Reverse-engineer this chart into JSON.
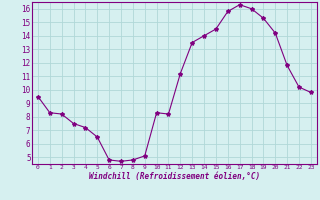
{
  "x": [
    0,
    1,
    2,
    3,
    4,
    5,
    6,
    7,
    8,
    9,
    10,
    11,
    12,
    13,
    14,
    15,
    16,
    17,
    18,
    19,
    20,
    21,
    22,
    23
  ],
  "y": [
    9.5,
    8.3,
    8.2,
    7.5,
    7.2,
    6.5,
    4.8,
    4.7,
    4.8,
    5.1,
    8.3,
    8.2,
    11.2,
    13.5,
    14.0,
    14.5,
    15.8,
    16.3,
    16.0,
    15.3,
    14.2,
    11.8,
    10.2,
    9.8
  ],
  "line_color": "#800080",
  "marker": "*",
  "marker_size": 3,
  "background_color": "#d6f0f0",
  "grid_color": "#b0d8d8",
  "xlabel": "Windchill (Refroidissement éolien,°C)",
  "ylim": [
    4.5,
    16.5
  ],
  "xlim": [
    -0.5,
    23.5
  ],
  "yticks": [
    5,
    6,
    7,
    8,
    9,
    10,
    11,
    12,
    13,
    14,
    15,
    16
  ],
  "xticks": [
    0,
    1,
    2,
    3,
    4,
    5,
    6,
    7,
    8,
    9,
    10,
    11,
    12,
    13,
    14,
    15,
    16,
    17,
    18,
    19,
    20,
    21,
    22,
    23
  ]
}
